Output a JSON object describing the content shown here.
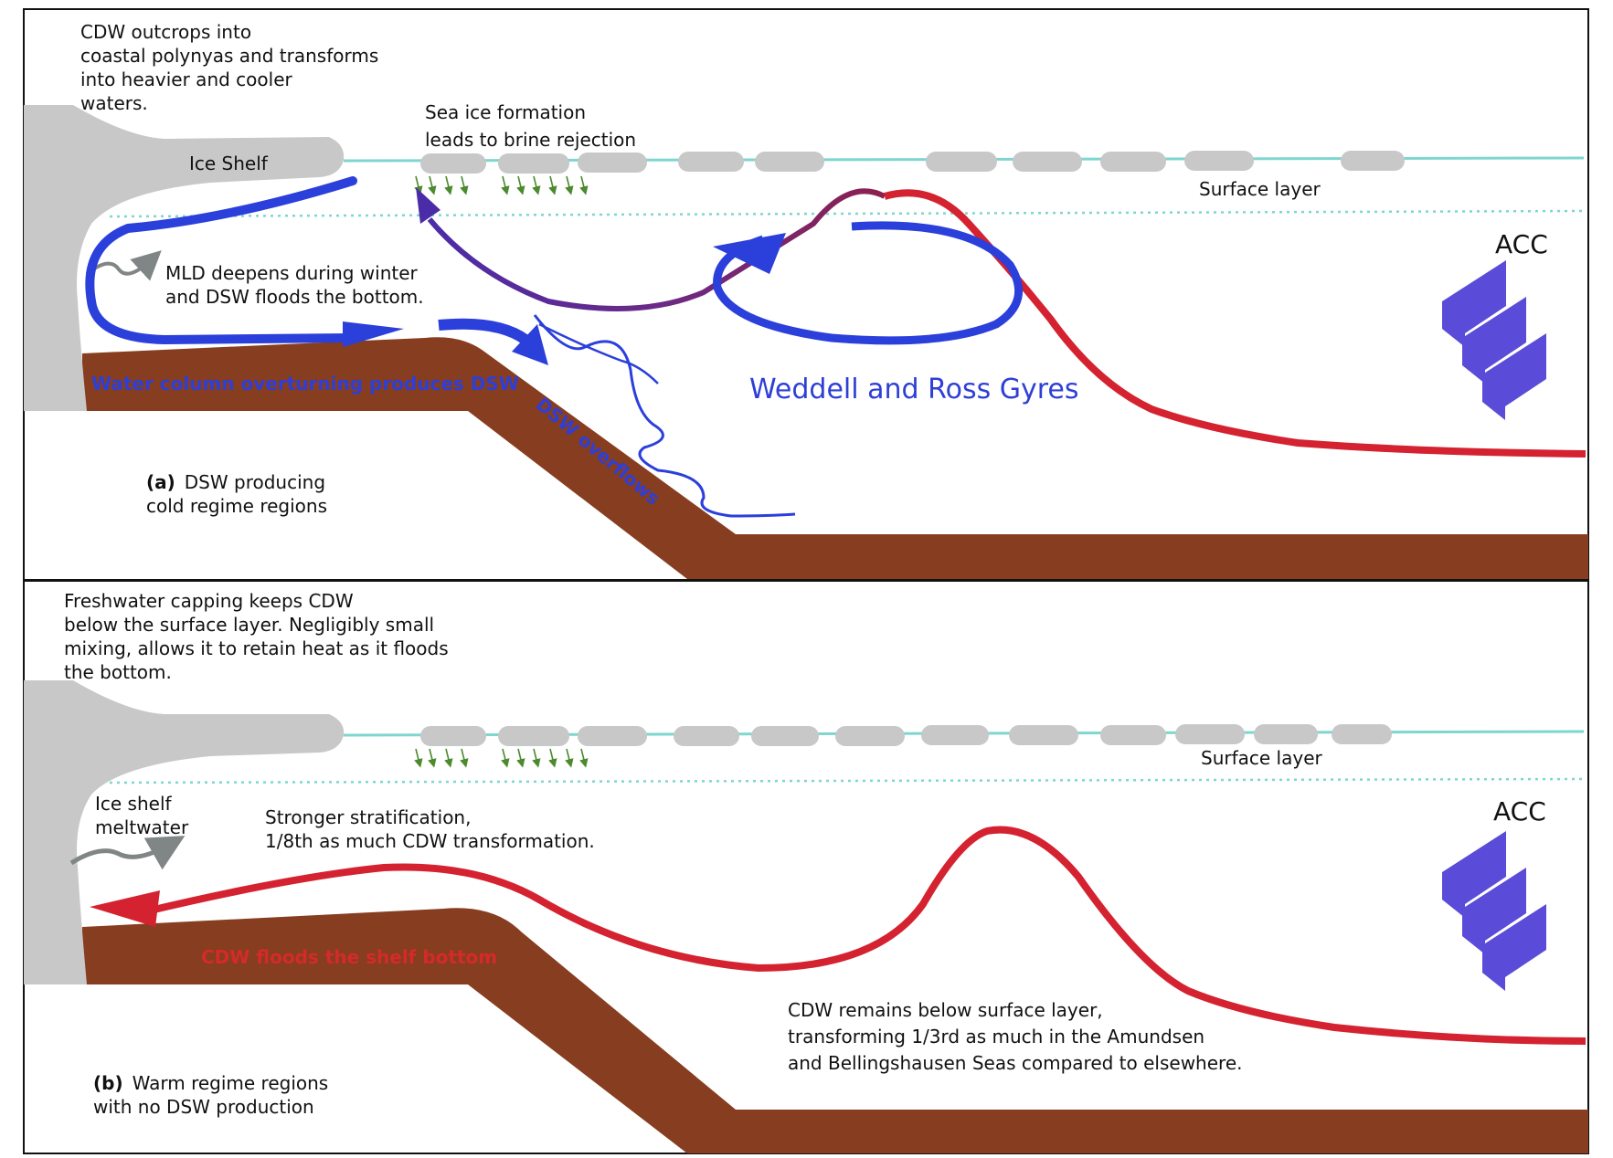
{
  "panel_a": {
    "tag": "(a)",
    "regime_label": "DSW producing",
    "regime_label_line2": "cold regime regions",
    "cdw_note": [
      "CDW outcrops into",
      "coastal polynyas and transforms",
      "into heavier  and cooler",
      "waters."
    ],
    "sea_ice_note": [
      "Sea ice formation",
      "leads to brine rejection"
    ],
    "ice_shelf": "Ice Shelf",
    "surface_layer": "Surface layer",
    "acc": "ACC",
    "mld_note": [
      "MLD deepens during winter",
      "and DSW floods the bottom."
    ],
    "overturning": "Water column overturning produces DSW",
    "overflow": "DSW overflows",
    "gyres": "Weddell and Ross Gyres"
  },
  "panel_b": {
    "tag": "(b)",
    "regime_label": "Warm regime regions",
    "regime_label_line2": "with no DSW production",
    "capping_note": [
      "Freshwater capping keeps CDW",
      "below the surface layer. Negligibly small",
      "mixing, allows it to retain heat as it floods",
      "the bottom."
    ],
    "meltwater": [
      "Ice shelf",
      "meltwater"
    ],
    "stratification": [
      "Stronger stratification,",
      "1/8th as much CDW transformation."
    ],
    "surface_layer": "Surface layer",
    "acc": "ACC",
    "cdw_floods": "CDW floods the shelf bottom",
    "cdw_remains": [
      "CDW remains below surface layer,",
      "transforming 1/3rd as much in the Amundsen",
      "and Bellingshausen Seas compared to elsewhere."
    ]
  },
  "colors": {
    "seabed": "#873d1f",
    "ice": "#c8c8c8",
    "surface_line": "#7ed6cf",
    "dsw_blue": "#2b3fdb",
    "cdw_red": "#d42230",
    "acc_arrows": "#5a4bd8",
    "brine_green": "#4c8a2e"
  },
  "icons": [
    "ice-shelf-icon",
    "sea-ice-floe-icon",
    "brine-arrow-icon",
    "acc-arrow-icon",
    "meltwater-arrow-icon"
  ]
}
